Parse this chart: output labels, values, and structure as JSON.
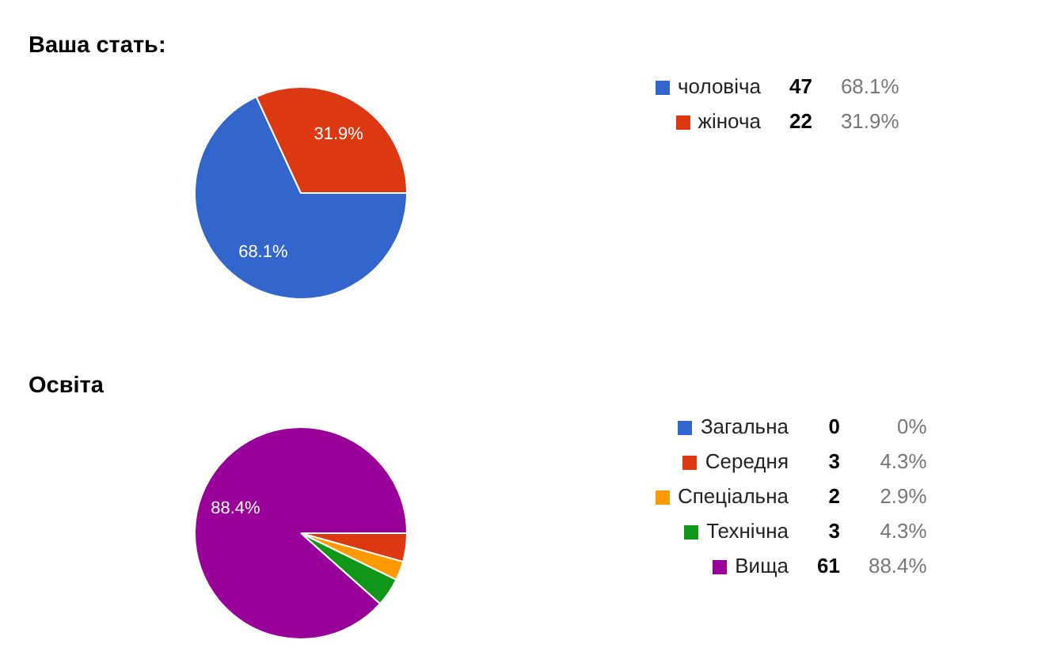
{
  "chart_data": [
    {
      "type": "pie",
      "title": "Ваша стать:",
      "categories": [
        "чоловіча",
        "жіноча"
      ],
      "values": [
        47,
        22
      ],
      "colors": [
        "#3366cc",
        "#dc3912"
      ],
      "data_labels": true,
      "legend": "right",
      "annotations": [
        {
          "text": "68.1%",
          "x": "чоловіча"
        },
        {
          "text": "31.9%",
          "x": "жіноча"
        }
      ]
    },
    {
      "type": "pie",
      "title": "Освіта",
      "categories": [
        "Загальна",
        "Середня",
        "Спеціальна",
        "Технічна",
        "Вища"
      ],
      "values": [
        0,
        3,
        2,
        3,
        61
      ],
      "colors": [
        "#3366cc",
        "#dc3912",
        "#ff9900",
        "#109618",
        "#990099"
      ],
      "value_labels": [
        "0",
        "3",
        "2",
        "3",
        "61"
      ],
      "legend": "right",
      "annotations": [
        {
          "text": "0%",
          "x": "Загальна"
        },
        {
          "text": "4.3%",
          "x": "Середня"
        },
        {
          "text": "2.9%",
          "x": "Спеціальна"
        },
        {
          "text": "4.3%",
          "x": "Технічна"
        },
        {
          "text": "88.4%",
          "x": "Вища"
        }
      ]
    }
  ]
}
